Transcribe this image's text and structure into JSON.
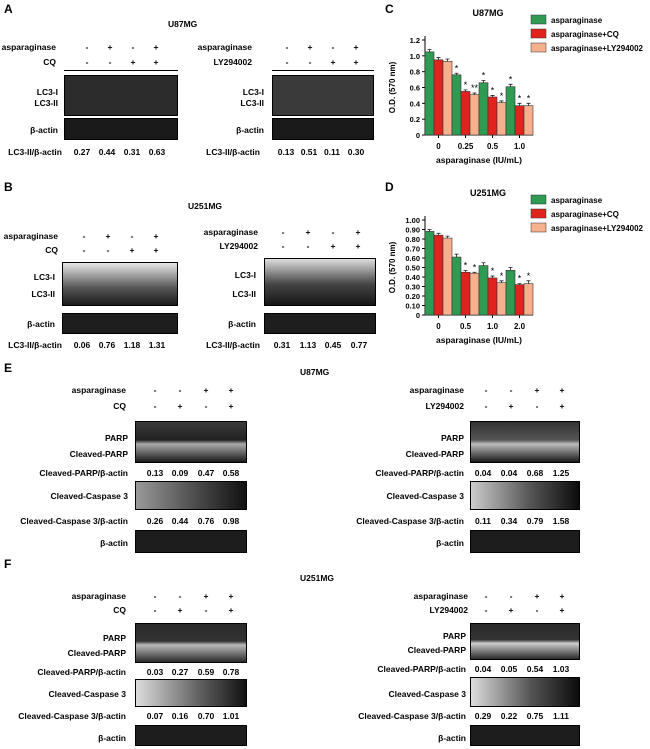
{
  "panel_letters": {
    "A": "A",
    "B": "B",
    "C": "C",
    "D": "D",
    "E": "E",
    "F": "F"
  },
  "labels": {
    "u87": "U87MG",
    "u251": "U251MG",
    "asn": "asparaginase",
    "cq": "CQ",
    "ly": "LY294002",
    "lc3i": "LC3-I",
    "lc3ii": "LC3-II",
    "actin": "β-actin",
    "lc3ratio": "LC3-II/β-actin",
    "parp": "PARP",
    "cparp": "Cleaved-PARP",
    "cparp_ratio": "Cleaved-PARP/β-actin",
    "ccasp": "Cleaved-Caspase 3",
    "ccasp_ratio": "Cleaved-Caspase 3/β-actin",
    "minus": "-",
    "plus": "+",
    "star": "*",
    "dstar": "**"
  },
  "signs": {
    "asn": [
      "-",
      "+",
      "-",
      "+"
    ],
    "drug": [
      "-",
      "-",
      "+",
      "+"
    ],
    "asn_e": [
      "-",
      "-",
      "+",
      "+"
    ],
    "drug_e": [
      "-",
      "+",
      "-",
      "+"
    ]
  },
  "values": {
    "A1": [
      "0.27",
      "0.44",
      "0.31",
      "0.63"
    ],
    "A2": [
      "0.13",
      "0.51",
      "0.11",
      "0.30"
    ],
    "B1": [
      "0.06",
      "0.76",
      "1.18",
      "1.31"
    ],
    "B2": [
      "0.31",
      "1.13",
      "0.45",
      "0.77"
    ],
    "E1_parp": [
      "0.13",
      "0.09",
      "0.47",
      "0.58"
    ],
    "E1_casp": [
      "0.26",
      "0.44",
      "0.76",
      "0.98"
    ],
    "E2_parp": [
      "0.04",
      "0.04",
      "0.68",
      "1.25"
    ],
    "E2_casp": [
      "0.11",
      "0.34",
      "0.79",
      "1.58"
    ],
    "F1_parp": [
      "0.03",
      "0.27",
      "0.59",
      "0.78"
    ],
    "F1_casp": [
      "0.07",
      "0.16",
      "0.70",
      "1.01"
    ],
    "F2_parp": [
      "0.04",
      "0.05",
      "0.54",
      "1.03"
    ],
    "F2_casp": [
      "0.29",
      "0.22",
      "0.75",
      "1.11"
    ]
  },
  "chart_data": [
    {
      "type": "bar",
      "title": "U87MG",
      "xlabel": "asparaginase (IU/mL)",
      "ylabel": "O.D. (570 nm)",
      "categories": [
        "0",
        "0.25",
        "0.5",
        "1.0"
      ],
      "ylim": [
        0,
        1.2
      ],
      "yticks": [
        "0",
        "0.2",
        "0.4",
        "0.6",
        "0.8",
        "1.0",
        "1.2"
      ],
      "legend_position": "top-right",
      "series": [
        {
          "name": "asparaginase",
          "color": "#2e9a52",
          "values": [
            1.05,
            0.76,
            0.66,
            0.61
          ],
          "errors": [
            0.03,
            0.02,
            0.03,
            0.03
          ],
          "sig": [
            "",
            "*",
            "*",
            "*"
          ]
        },
        {
          "name": "asparaginase+CQ",
          "color": "#e1231e",
          "values": [
            0.95,
            0.55,
            0.48,
            0.37
          ],
          "errors": [
            0.03,
            0.02,
            0.02,
            0.03
          ],
          "sig": [
            "",
            "*",
            "*",
            "*"
          ]
        },
        {
          "name": "asparaginase+LY294002",
          "color": "#f6b08e",
          "values": [
            0.93,
            0.51,
            0.41,
            0.37
          ],
          "errors": [
            0.03,
            0.02,
            0.02,
            0.03
          ],
          "sig": [
            "",
            "**",
            "*",
            "*"
          ]
        }
      ]
    },
    {
      "type": "bar",
      "title": "U251MG",
      "xlabel": "asparaginase (IU/mL)",
      "ylabel": "O.D. (570 nm)",
      "categories": [
        "0",
        "0.5",
        "1.0",
        "2.0"
      ],
      "ylim": [
        0,
        1.0
      ],
      "yticks": [
        "0",
        "0.10",
        "0.20",
        "0.30",
        "0.40",
        "0.50",
        "0.60",
        "0.70",
        "0.80",
        "0.90",
        "1.00"
      ],
      "legend_position": "top-right",
      "series": [
        {
          "name": "asparaginase",
          "color": "#2e9a52",
          "values": [
            0.88,
            0.61,
            0.52,
            0.47
          ],
          "errors": [
            0.02,
            0.03,
            0.03,
            0.03
          ],
          "sig": [
            "",
            "",
            "",
            ""
          ]
        },
        {
          "name": "asparaginase+CQ",
          "color": "#e1231e",
          "values": [
            0.84,
            0.45,
            0.39,
            0.32
          ],
          "errors": [
            0.02,
            0.02,
            0.02,
            0.01
          ],
          "sig": [
            "",
            "*",
            "*",
            "*"
          ]
        },
        {
          "name": "asparaginase+LY294002",
          "color": "#f6b08e",
          "values": [
            0.81,
            0.44,
            0.34,
            0.33
          ],
          "errors": [
            0.02,
            0.01,
            0.02,
            0.03
          ],
          "sig": [
            "",
            "*",
            "*",
            "*"
          ]
        }
      ]
    }
  ]
}
